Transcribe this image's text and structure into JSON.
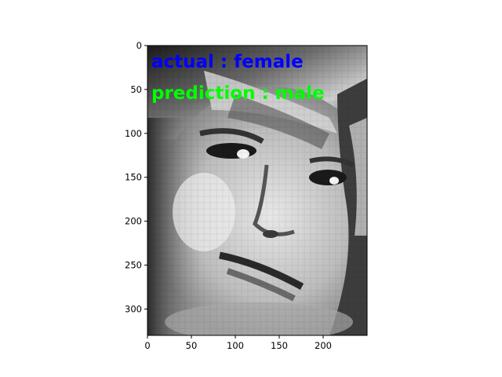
{
  "overlay": {
    "actual_text": "actual : female",
    "prediction_text": "prediction : male",
    "actual_color": "#0000ff",
    "prediction_color": "#00ff00"
  },
  "axes": {
    "x_ticks": [
      0,
      50,
      100,
      150,
      200
    ],
    "y_ticks": [
      0,
      50,
      100,
      150,
      200,
      250,
      300
    ],
    "x_range": [
      0,
      250
    ],
    "y_range": [
      0,
      330
    ]
  },
  "image": {
    "description_icon": "grayscale-face-photo",
    "colormap": "gray"
  }
}
